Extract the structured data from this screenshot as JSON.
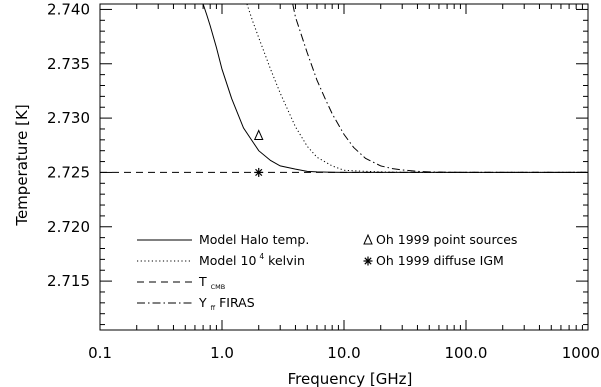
{
  "chart_data": {
    "type": "line",
    "xlabel": "Frequency [GHz]",
    "ylabel": "Temperature [K]",
    "xscale": "log",
    "xlim": [
      0.1,
      1000.0
    ],
    "ylim": [
      2.7105,
      2.7405
    ],
    "grid": false,
    "legend_placement": "bottom",
    "x_ticks": [
      {
        "value": 0.1,
        "label": "0.1"
      },
      {
        "value": 1.0,
        "label": "1.0"
      },
      {
        "value": 10.0,
        "label": "10.0"
      },
      {
        "value": 100.0,
        "label": "100.0"
      },
      {
        "value": 1000.0,
        "label": "1000.0"
      }
    ],
    "y_ticks": [
      {
        "value": 2.715,
        "label": "2.715"
      },
      {
        "value": 2.72,
        "label": "2.720"
      },
      {
        "value": 2.725,
        "label": "2.725"
      },
      {
        "value": 2.73,
        "label": "2.730"
      },
      {
        "value": 2.735,
        "label": "2.735"
      },
      {
        "value": 2.74,
        "label": "2.740"
      }
    ],
    "series": [
      {
        "key": "halo",
        "style": "solid",
        "legend": {
          "main": "Model Halo temp.",
          "sup": "",
          "sub": "",
          "suffix": ""
        },
        "x": [
          0.7,
          0.75,
          0.8,
          0.9,
          1.0,
          1.2,
          1.5,
          2.0,
          2.5,
          3.0,
          4.0,
          5.0,
          6.0,
          8.0,
          10.0,
          15.0,
          20.0,
          50.0,
          100.0,
          1000.0
        ],
        "y": [
          2.7405,
          2.7395,
          2.7385,
          2.7365,
          2.7345,
          2.7318,
          2.7291,
          2.727,
          2.7261,
          2.7256,
          2.7253,
          2.7251,
          2.72505,
          2.72502,
          2.72501,
          2.725,
          2.725,
          2.725,
          2.725,
          2.725
        ]
      },
      {
        "key": "model-1e4",
        "style": "dotted",
        "legend": {
          "main": "Model 10",
          "sup": "4",
          "sub": "",
          "suffix": " kelvin"
        },
        "x": [
          1.6,
          1.8,
          2.0,
          2.5,
          3.0,
          4.0,
          5.0,
          6.0,
          8.0,
          10.0,
          12.0,
          15.0,
          20.0,
          30.0,
          50.0,
          100.0,
          1000.0
        ],
        "y": [
          2.7405,
          2.7388,
          2.7374,
          2.7345,
          2.7323,
          2.7292,
          2.7274,
          2.7264,
          2.7256,
          2.7252,
          2.72515,
          2.7251,
          2.72505,
          2.72502,
          2.725,
          2.725,
          2.725
        ]
      },
      {
        "key": "tcmb",
        "style": "dashed",
        "legend": {
          "main": "T",
          "sup": "",
          "sub": "CMB",
          "suffix": ""
        },
        "x": [
          0.1,
          1000.0
        ],
        "y": [
          2.725,
          2.725
        ]
      },
      {
        "key": "yff",
        "style": "dashdot",
        "legend": {
          "main": "Y",
          "sup": "",
          "sub": "ff",
          "suffix": " FIRAS"
        },
        "x": [
          3.8,
          4.0,
          5.0,
          6.0,
          7.0,
          8.0,
          10.0,
          12.0,
          15.0,
          20.0,
          25.0,
          30.0,
          40.0,
          50.0,
          70.0,
          100.0,
          1000.0
        ],
        "y": [
          2.7405,
          2.7393,
          2.736,
          2.7335,
          2.7318,
          2.7304,
          2.7285,
          2.7273,
          2.7263,
          2.7256,
          2.72535,
          2.72523,
          2.7251,
          2.72505,
          2.72502,
          2.725,
          2.725
        ]
      }
    ],
    "points": [
      {
        "key": "point-sources",
        "marker": "triangle",
        "x": 2.0,
        "y": 2.7284,
        "legend": "Oh 1999 point sources"
      },
      {
        "key": "diffuse-igm",
        "marker": "asterisk",
        "x": 2.0,
        "y": 2.725,
        "legend": "Oh 1999 diffuse IGM"
      }
    ]
  }
}
